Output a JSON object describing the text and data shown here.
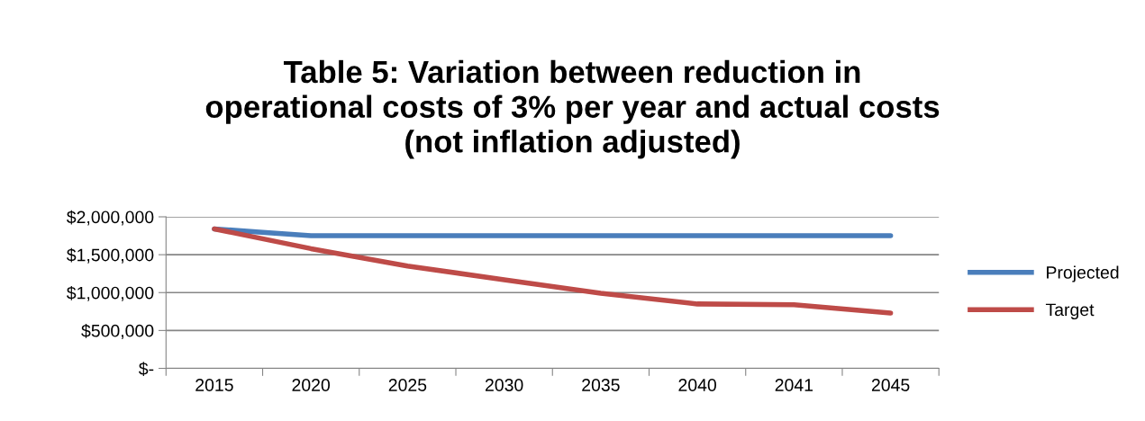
{
  "chart_data": {
    "type": "line",
    "title": "Table 5: Variation between reduction in\noperational costs of 3% per year and actual costs\n(not inflation adjusted)",
    "categories": [
      "2015",
      "2020",
      "2025",
      "2030",
      "2035",
      "2040",
      "2041",
      "2045"
    ],
    "series": [
      {
        "name": "Projected",
        "color": "#4a7ebb",
        "values": [
          1840000,
          1750000,
          1750000,
          1750000,
          1750000,
          1750000,
          1750000,
          1750000
        ]
      },
      {
        "name": "Target",
        "color": "#be4b48",
        "values": [
          1840000,
          1580000,
          1350000,
          1170000,
          990000,
          850000,
          840000,
          730000
        ]
      }
    ],
    "ylim": [
      0,
      2000000
    ],
    "yticks": [
      {
        "value": 0,
        "label": "$-"
      },
      {
        "value": 500000,
        "label": "$500,000"
      },
      {
        "value": 1000000,
        "label": "$1,000,000"
      },
      {
        "value": 1500000,
        "label": "$1,500,000"
      },
      {
        "value": 2000000,
        "label": "$2,000,000"
      }
    ],
    "grid": "y",
    "legend": "right",
    "marker": "none",
    "line_style": "solid"
  }
}
